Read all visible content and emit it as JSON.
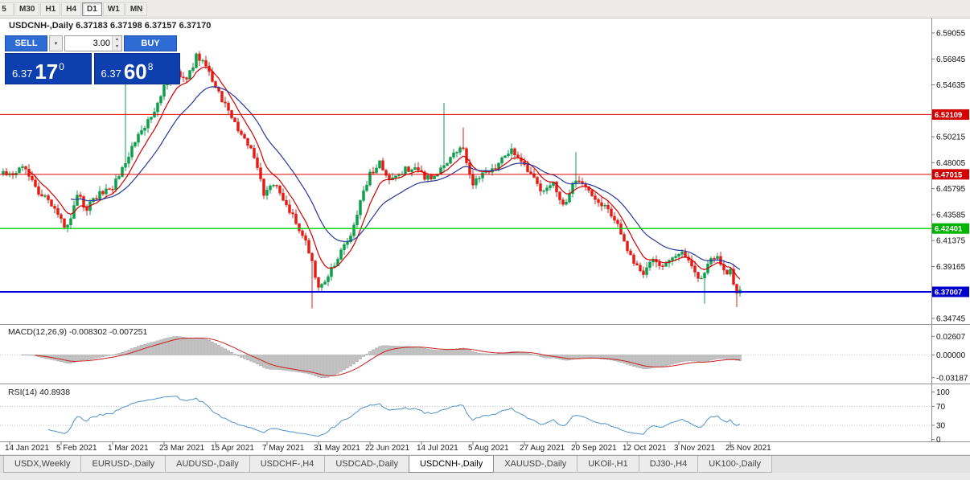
{
  "toolbar": {
    "timeframes": [
      {
        "label": "5",
        "active": false
      },
      {
        "label": "M30",
        "active": false
      },
      {
        "label": "H1",
        "active": false
      },
      {
        "label": "H4",
        "active": false
      },
      {
        "label": "D1",
        "active": true
      },
      {
        "label": "W1",
        "active": false
      },
      {
        "label": "MN",
        "active": false
      }
    ]
  },
  "chart": {
    "title": "USDCNH-,Daily",
    "ohlc": "6.37183 6.37198 6.37157 6.37170",
    "trade": {
      "sell": "SELL",
      "buy": "BUY",
      "volume": "3.00",
      "sell_big": "6.37",
      "sell_pips": "17",
      "sell_sup": "0",
      "buy_big": "6.37",
      "buy_pips": "60",
      "buy_sup": "8"
    },
    "axis_labels": [
      {
        "t": "6.59055",
        "v": 6.59055
      },
      {
        "t": "6.56845",
        "v": 6.56845
      },
      {
        "t": "6.54635",
        "v": 6.54635
      },
      {
        "t": "6.50215",
        "v": 6.50215
      },
      {
        "t": "6.48005",
        "v": 6.48005
      },
      {
        "t": "6.45795",
        "v": 6.45795
      },
      {
        "t": "6.43585",
        "v": 6.43585
      },
      {
        "t": "6.41375",
        "v": 6.41375
      },
      {
        "t": "6.39165",
        "v": 6.39165
      },
      {
        "t": "6.34745",
        "v": 6.34745
      }
    ],
    "levels": [
      {
        "value": 6.52109,
        "label": "6.52109",
        "color": "#e60000",
        "badge": "#d40000",
        "width": 1
      },
      {
        "value": 6.47015,
        "label": "6.47015",
        "color": "#e60000",
        "badge": "#d40000",
        "width": 1
      },
      {
        "value": 6.42401,
        "label": "6.42401",
        "color": "#00d200",
        "badge": "#00b400",
        "width": 1.3
      },
      {
        "value": 6.37007,
        "label": "6.37007",
        "color": "#0000e0",
        "badge": "#0000cc",
        "width": 2
      }
    ]
  },
  "macd": {
    "label": "MACD(12,26,9) -0.008302 -0.007251",
    "max": 0.02607,
    "min": -0.03187,
    "axis": [
      {
        "t": "0.02607",
        "v": 0.02607
      },
      {
        "t": "0.00000",
        "v": 0
      },
      {
        "t": "-0.03187",
        "v": -0.03187
      }
    ]
  },
  "rsi": {
    "label": "RSI(14) 40.8938",
    "value": 40.8938,
    "levels": [
      70,
      30
    ],
    "axis": [
      {
        "t": "100",
        "v": 100
      },
      {
        "t": "70",
        "v": 70
      },
      {
        "t": "30",
        "v": 30
      },
      {
        "t": "0",
        "v": 0
      }
    ]
  },
  "timeline": {
    "first_tick_day": 2,
    "tick_step": 16,
    "dates": [
      "14 Jan 2021",
      "5 Feb 2021",
      "1 Mar 2021",
      "23 Mar 2021",
      "15 Apr 2021",
      "7 May 2021",
      "31 May 2021",
      "22 Jun 2021",
      "14 Jul 2021",
      "5 Aug 2021",
      "27 Aug 2021",
      "20 Sep 2021",
      "12 Oct 2021",
      "3 Nov 2021",
      "25 Nov 2021"
    ]
  },
  "tabs": [
    {
      "label": "USDX,Weekly",
      "active": false
    },
    {
      "label": "EURUSD-,Daily",
      "active": false
    },
    {
      "label": "AUDUSD-,Daily",
      "active": false
    },
    {
      "label": "USDCHF-,H4",
      "active": false
    },
    {
      "label": "USDCAD-,Daily",
      "active": false
    },
    {
      "label": "USDCNH-,Daily",
      "active": true
    },
    {
      "label": "XAUUSD-,Daily",
      "active": false
    },
    {
      "label": "UKOil-,H1",
      "active": false
    },
    {
      "label": "DJ30-,H4",
      "active": false
    },
    {
      "label": "UK100-,Daily",
      "active": false
    }
  ],
  "colors": {
    "up": "#119e4c",
    "down": "#df2019",
    "ma_fast": "#d40000",
    "ma_slow": "#26379b",
    "hist": "#c2c2c2",
    "hist_edge": "#8e8e8e",
    "macd_signal": "#c81e1e",
    "rsi": "#4f93ce"
  },
  "chart_data": {
    "type": "candlestick",
    "symbol": "USDCNH-",
    "period": "Daily",
    "open": 6.37183,
    "high": 6.37198,
    "low": 6.37157,
    "close": 6.3717,
    "y_range": [
      6.34745,
      6.59055
    ],
    "horizontal_levels": [
      6.52109,
      6.47015,
      6.42401,
      6.37007
    ],
    "macd_last": [
      -0.008302,
      -0.007251
    ],
    "rsi_last": 40.8938,
    "days": 230,
    "anchors": [
      [
        0,
        6.47
      ],
      [
        2,
        6.468
      ],
      [
        6,
        6.479
      ],
      [
        10,
        6.458
      ],
      [
        14,
        6.448
      ],
      [
        18,
        6.431
      ],
      [
        20,
        6.425
      ],
      [
        23,
        6.452
      ],
      [
        26,
        6.441
      ],
      [
        30,
        6.453
      ],
      [
        34,
        6.458
      ],
      [
        37,
        6.476
      ],
      [
        40,
        6.492
      ],
      [
        42,
        6.505
      ],
      [
        46,
        6.518
      ],
      [
        50,
        6.544
      ],
      [
        54,
        6.558
      ],
      [
        57,
        6.549
      ],
      [
        60,
        6.571
      ],
      [
        63,
        6.564
      ],
      [
        66,
        6.545
      ],
      [
        70,
        6.524
      ],
      [
        74,
        6.504
      ],
      [
        78,
        6.487
      ],
      [
        81,
        6.455
      ],
      [
        84,
        6.462
      ],
      [
        88,
        6.445
      ],
      [
        92,
        6.425
      ],
      [
        95,
        6.405
      ],
      [
        98,
        6.372
      ],
      [
        101,
        6.383
      ],
      [
        104,
        6.398
      ],
      [
        108,
        6.42
      ],
      [
        111,
        6.447
      ],
      [
        114,
        6.47
      ],
      [
        117,
        6.481
      ],
      [
        120,
        6.465
      ],
      [
        124,
        6.472
      ],
      [
        127,
        6.477
      ],
      [
        130,
        6.47
      ],
      [
        133,
        6.465
      ],
      [
        137,
        6.48
      ],
      [
        140,
        6.487
      ],
      [
        143,
        6.492
      ],
      [
        146,
        6.463
      ],
      [
        150,
        6.472
      ],
      [
        154,
        6.479
      ],
      [
        158,
        6.492
      ],
      [
        161,
        6.481
      ],
      [
        164,
        6.468
      ],
      [
        168,
        6.455
      ],
      [
        171,
        6.462
      ],
      [
        174,
        6.443
      ],
      [
        178,
        6.467
      ],
      [
        182,
        6.457
      ],
      [
        186,
        6.445
      ],
      [
        190,
        6.431
      ],
      [
        193,
        6.414
      ],
      [
        196,
        6.392
      ],
      [
        199,
        6.386
      ],
      [
        202,
        6.396
      ],
      [
        205,
        6.389
      ],
      [
        208,
        6.397
      ],
      [
        211,
        6.404
      ],
      [
        214,
        6.391
      ],
      [
        217,
        6.381
      ],
      [
        220,
        6.396
      ],
      [
        222,
        6.401
      ],
      [
        224,
        6.389
      ],
      [
        226,
        6.387
      ],
      [
        228,
        6.366
      ],
      [
        229,
        6.3717
      ]
    ],
    "spikes": [
      {
        "day": 38,
        "high": 6.552
      },
      {
        "day": 96,
        "low": 6.356
      },
      {
        "day": 137,
        "high": 6.531
      },
      {
        "day": 143,
        "high": 6.51
      },
      {
        "day": 178,
        "high": 6.489
      },
      {
        "day": 218,
        "low": 6.36
      },
      {
        "day": 228,
        "low": 6.357
      }
    ]
  }
}
